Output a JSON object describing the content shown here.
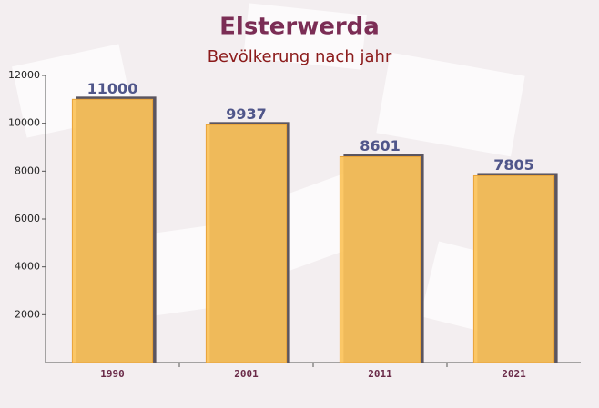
{
  "chart_data": {
    "type": "bar",
    "title": "Elsterwerda",
    "subtitle": "Bevölkerung nach jahr",
    "categories": [
      "1990",
      "2001",
      "2011",
      "2021"
    ],
    "values": [
      11000,
      9937,
      8601,
      7805
    ],
    "color": "#fcc35a",
    "ylim": [
      0,
      12000
    ],
    "yticks": [
      2000,
      4000,
      6000,
      8000,
      10000,
      12000
    ]
  }
}
